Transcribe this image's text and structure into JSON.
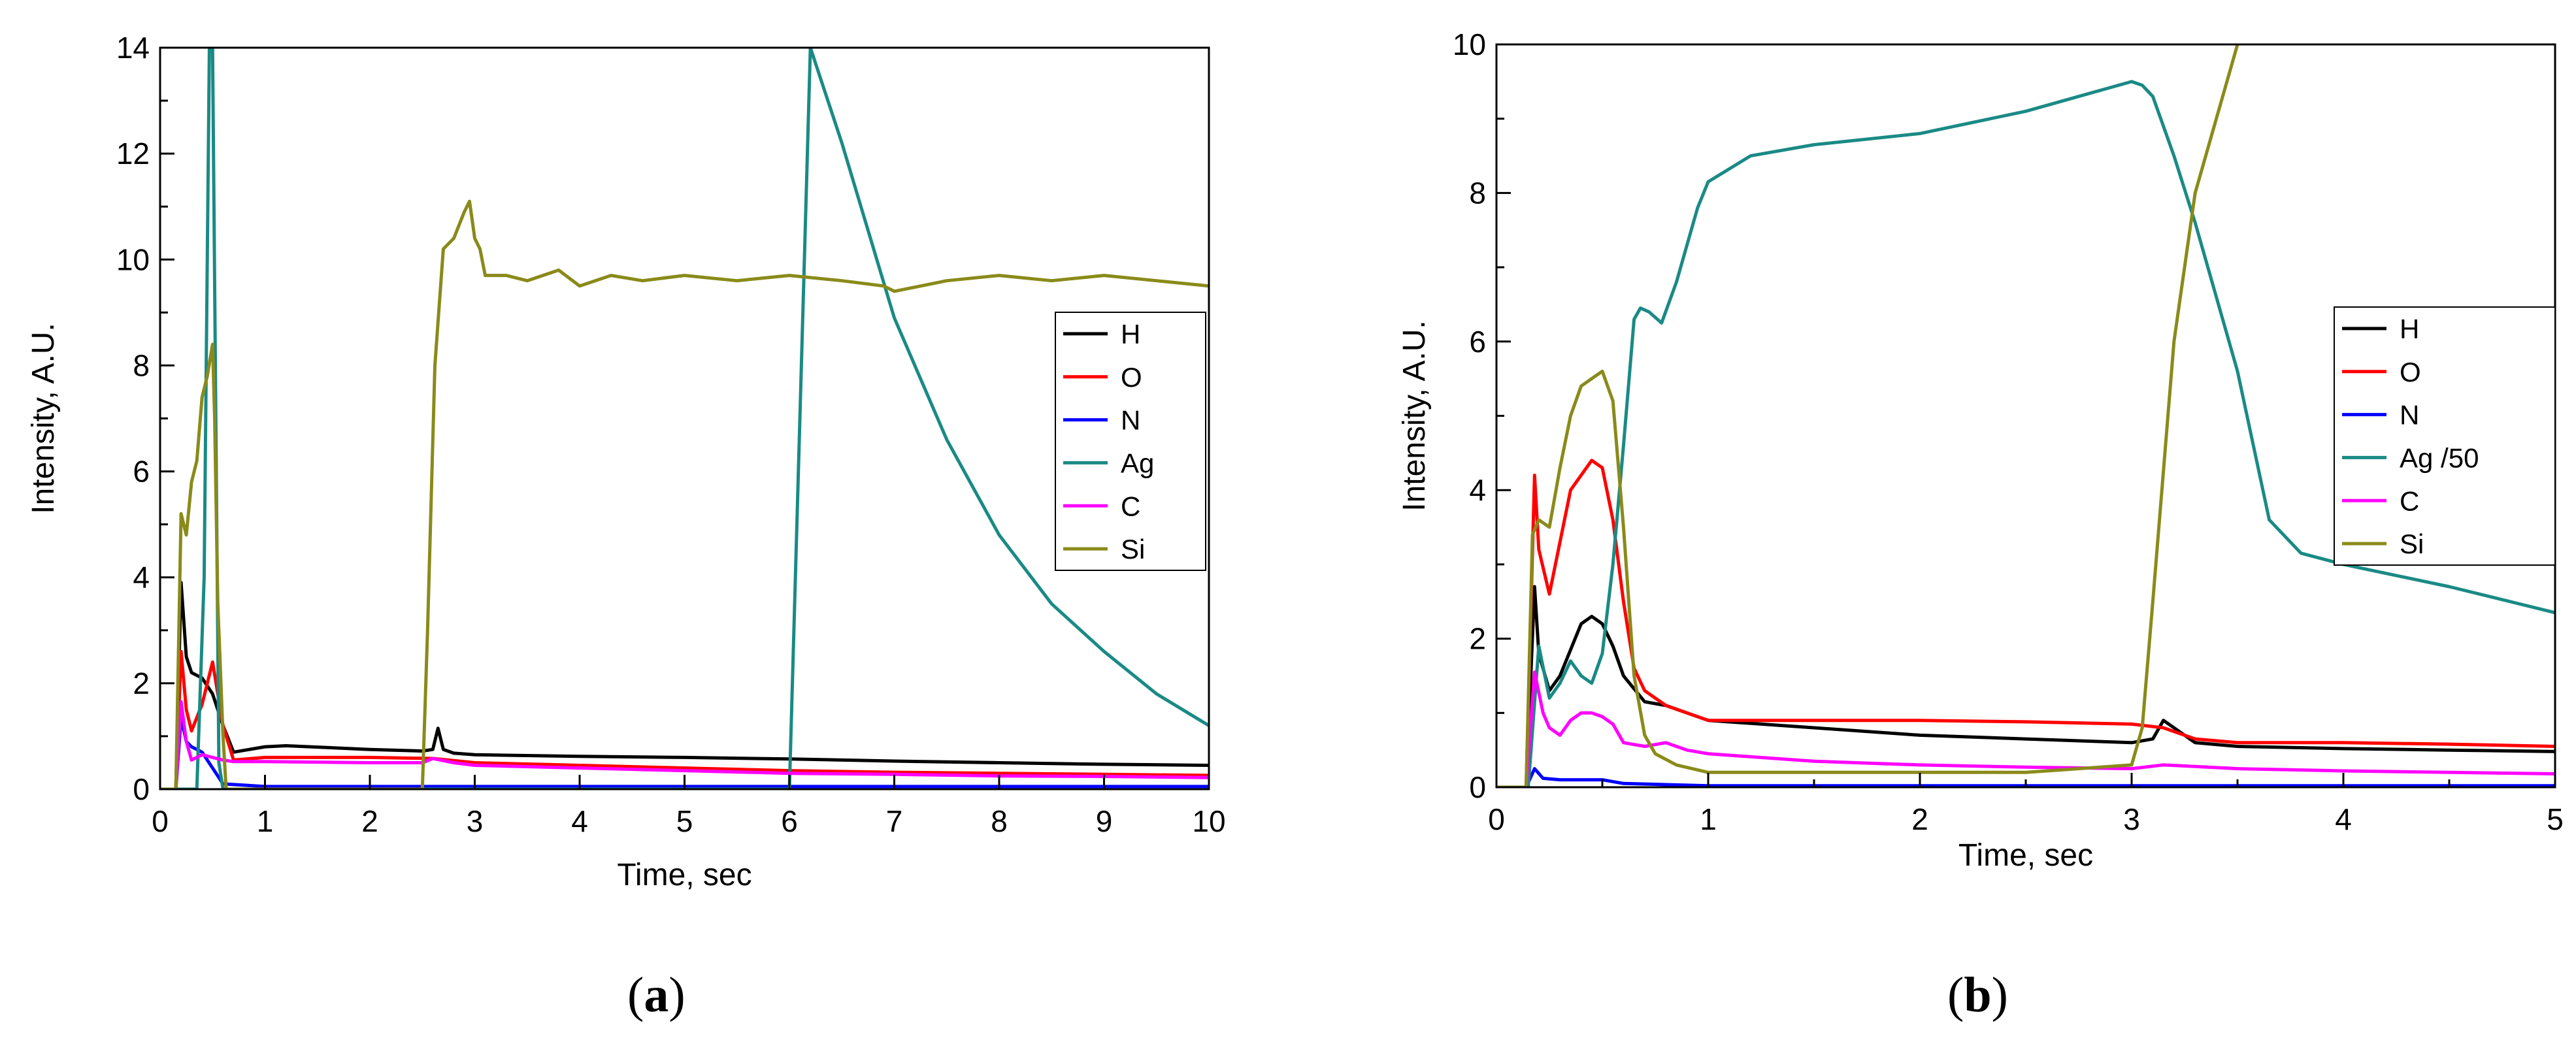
{
  "colors": {
    "H": "#000000",
    "O": "#ff0000",
    "N": "#0000ff",
    "Ag": "#1a8a85",
    "C": "#ff00ff",
    "Si": "#8a8a1a"
  },
  "captions": {
    "a": "a",
    "b": "b"
  },
  "chart_data": [
    {
      "type": "line",
      "id": "a",
      "title": "",
      "xlabel": "Time, sec",
      "ylabel": "Intensity, A.U.",
      "xlim": [
        0,
        10
      ],
      "ylim": [
        0,
        14
      ],
      "xticks": [
        "0",
        "1",
        "2",
        "3",
        "4",
        "5",
        "6",
        "7",
        "8",
        "9",
        "10"
      ],
      "yticks": [
        "0",
        "2",
        "4",
        "6",
        "8",
        "10",
        "12",
        "14"
      ],
      "legend": "right",
      "series": [
        {
          "name": "H",
          "x": [
            0,
            0.15,
            0.2,
            0.25,
            0.3,
            0.4,
            0.5,
            0.6,
            0.7,
            1,
            1.2,
            2,
            2.5,
            2.6,
            2.65,
            2.7,
            2.8,
            3,
            4,
            5,
            6,
            7,
            8,
            9,
            10
          ],
          "y": [
            0,
            0,
            3.9,
            2.5,
            2.2,
            2.1,
            1.8,
            1.2,
            0.7,
            0.8,
            0.82,
            0.75,
            0.72,
            0.75,
            1.15,
            0.75,
            0.68,
            0.65,
            0.62,
            0.6,
            0.57,
            0.53,
            0.5,
            0.47,
            0.45
          ]
        },
        {
          "name": "O",
          "x": [
            0,
            0.15,
            0.2,
            0.25,
            0.3,
            0.4,
            0.5,
            0.6,
            0.7,
            1,
            2,
            2.6,
            3,
            4,
            5,
            6,
            7,
            8,
            9,
            10
          ],
          "y": [
            0,
            0,
            2.6,
            1.5,
            1.1,
            1.6,
            2.4,
            1.2,
            0.55,
            0.6,
            0.6,
            0.58,
            0.5,
            0.45,
            0.4,
            0.35,
            0.32,
            0.3,
            0.28,
            0.26
          ]
        },
        {
          "name": "N",
          "x": [
            0,
            0.15,
            0.2,
            0.25,
            0.3,
            0.4,
            0.5,
            0.6,
            1,
            2,
            3,
            4,
            6,
            8,
            10
          ],
          "y": [
            0,
            0,
            1.35,
            0.9,
            0.8,
            0.7,
            0.4,
            0.1,
            0.05,
            0.05,
            0.05,
            0.05,
            0.05,
            0.05,
            0.05
          ]
        },
        {
          "name": "Ag",
          "x": [
            0,
            0.35,
            0.42,
            0.47,
            0.5,
            0.56,
            0.6,
            2.6,
            3,
            3.5,
            4,
            5,
            5.5,
            6,
            6.2,
            6.5,
            7,
            7.5,
            8,
            8.5,
            9,
            9.5,
            10
          ],
          "y": [
            0,
            0,
            4,
            14,
            14,
            0.5,
            0,
            0,
            0,
            0,
            0,
            0,
            0,
            0,
            14,
            12.2,
            8.9,
            6.6,
            4.8,
            3.5,
            2.6,
            1.8,
            1.2
          ]
        },
        {
          "name": "C",
          "x": [
            0,
            0.15,
            0.2,
            0.25,
            0.3,
            0.35,
            0.4,
            0.5,
            0.6,
            0.7,
            1,
            2,
            2.5,
            2.6,
            2.8,
            3,
            4,
            5,
            6,
            7,
            8,
            9,
            10
          ],
          "y": [
            0,
            0,
            1.65,
            0.9,
            0.55,
            0.6,
            0.65,
            0.6,
            0.55,
            0.52,
            0.52,
            0.5,
            0.5,
            0.58,
            0.5,
            0.45,
            0.4,
            0.35,
            0.3,
            0.28,
            0.25,
            0.24,
            0.22
          ]
        },
        {
          "name": "Si",
          "x": [
            0,
            0.15,
            0.2,
            0.25,
            0.3,
            0.35,
            0.4,
            0.45,
            0.5,
            0.52,
            0.55,
            0.6,
            0.63,
            0.7,
            1,
            2,
            2.5,
            2.55,
            2.62,
            2.7,
            2.8,
            2.9,
            2.95,
            3.0,
            3.05,
            3.1,
            3.3,
            3.5,
            3.8,
            4,
            4.3,
            4.6,
            5,
            5.5,
            6,
            6.5,
            6.9,
            7,
            7.5,
            8,
            8.5,
            9,
            9.5,
            10
          ],
          "y": [
            0,
            0,
            5.2,
            4.8,
            5.8,
            6.2,
            7.4,
            7.8,
            8.4,
            7,
            3.5,
            1,
            0,
            0,
            0,
            0,
            0,
            3,
            8,
            10.2,
            10.4,
            10.9,
            11.1,
            10.4,
            10.2,
            9.7,
            9.7,
            9.6,
            9.8,
            9.5,
            9.7,
            9.6,
            9.7,
            9.6,
            9.7,
            9.6,
            9.5,
            9.4,
            9.6,
            9.7,
            9.6,
            9.7,
            9.6,
            9.5
          ]
        }
      ]
    },
    {
      "type": "line",
      "id": "b",
      "title": "",
      "xlabel": "Time, sec",
      "ylabel": "Intensity, A.U.",
      "xlim": [
        0,
        5
      ],
      "ylim": [
        0,
        10
      ],
      "xticks": [
        "0",
        "1",
        "2",
        "3",
        "4",
        "5"
      ],
      "yticks": [
        "0",
        "2",
        "4",
        "6",
        "8",
        "10"
      ],
      "legend": "right",
      "series": [
        {
          "name": "H",
          "x": [
            0,
            0.14,
            0.18,
            0.2,
            0.25,
            0.3,
            0.4,
            0.45,
            0.5,
            0.55,
            0.6,
            0.7,
            0.8,
            1.0,
            1.5,
            2,
            2.5,
            3,
            3.1,
            3.15,
            3.2,
            3.3,
            3.5,
            4,
            4.5,
            5
          ],
          "y": [
            0,
            0,
            2.7,
            1.8,
            1.3,
            1.5,
            2.2,
            2.3,
            2.2,
            1.9,
            1.5,
            1.15,
            1.1,
            0.9,
            0.8,
            0.7,
            0.65,
            0.6,
            0.65,
            0.9,
            0.8,
            0.6,
            0.55,
            0.52,
            0.5,
            0.48
          ]
        },
        {
          "name": "O",
          "x": [
            0,
            0.14,
            0.18,
            0.2,
            0.25,
            0.3,
            0.35,
            0.45,
            0.5,
            0.55,
            0.6,
            0.65,
            0.7,
            0.8,
            1,
            1.5,
            2,
            2.5,
            3,
            3.15,
            3.3,
            3.5,
            4,
            4.5,
            5
          ],
          "y": [
            0,
            0,
            4.2,
            3.2,
            2.6,
            3.3,
            4.0,
            4.4,
            4.3,
            3.6,
            2.5,
            1.6,
            1.3,
            1.1,
            0.9,
            0.9,
            0.9,
            0.88,
            0.85,
            0.8,
            0.65,
            0.6,
            0.6,
            0.58,
            0.55
          ]
        },
        {
          "name": "N",
          "x": [
            0,
            0.14,
            0.18,
            0.22,
            0.3,
            0.5,
            0.6,
            1,
            2,
            3,
            4,
            5
          ],
          "y": [
            0,
            0,
            0.25,
            0.12,
            0.1,
            0.1,
            0.05,
            0.02,
            0.02,
            0.02,
            0.02,
            0.02
          ]
        },
        {
          "name": "Ag /50",
          "x": [
            0,
            0.15,
            0.2,
            0.25,
            0.3,
            0.35,
            0.4,
            0.45,
            0.5,
            0.55,
            0.6,
            0.65,
            0.68,
            0.72,
            0.78,
            0.85,
            0.95,
            1.0,
            1.2,
            1.5,
            2,
            2.5,
            3,
            3.05,
            3.1,
            3.2,
            3.3,
            3.5,
            3.65,
            3.8,
            4,
            4.5,
            5
          ],
          "y": [
            0,
            0,
            1.9,
            1.2,
            1.4,
            1.7,
            1.5,
            1.4,
            1.8,
            3.0,
            4.6,
            6.3,
            6.45,
            6.4,
            6.25,
            6.8,
            7.8,
            8.15,
            8.5,
            8.65,
            8.8,
            9.1,
            9.5,
            9.45,
            9.3,
            8.5,
            7.6,
            5.6,
            3.6,
            3.15,
            3.0,
            2.7,
            2.35
          ]
        },
        {
          "name": "C",
          "x": [
            0,
            0.14,
            0.18,
            0.22,
            0.25,
            0.3,
            0.35,
            0.4,
            0.45,
            0.5,
            0.55,
            0.6,
            0.7,
            0.8,
            0.9,
            1,
            1.5,
            2,
            2.5,
            3,
            3.15,
            3.3,
            3.5,
            4,
            4.5,
            5
          ],
          "y": [
            0,
            0,
            1.55,
            1.0,
            0.8,
            0.7,
            0.9,
            1.0,
            1.0,
            0.95,
            0.85,
            0.6,
            0.55,
            0.6,
            0.5,
            0.45,
            0.35,
            0.3,
            0.27,
            0.25,
            0.3,
            0.28,
            0.25,
            0.22,
            0.2,
            0.18
          ]
        },
        {
          "name": "Si",
          "x": [
            0,
            0.14,
            0.17,
            0.2,
            0.25,
            0.3,
            0.35,
            0.4,
            0.45,
            0.5,
            0.55,
            0.6,
            0.65,
            0.7,
            0.75,
            0.85,
            1,
            1.5,
            2,
            2.5,
            3,
            3.05,
            3.1,
            3.2,
            3.3,
            3.4,
            3.45,
            3.5
          ],
          "y": [
            0,
            0,
            3.4,
            3.6,
            3.5,
            4.3,
            5.0,
            5.4,
            5.5,
            5.6,
            5.2,
            3.5,
            1.5,
            0.7,
            0.45,
            0.3,
            0.2,
            0.2,
            0.2,
            0.2,
            0.3,
            0.8,
            2.5,
            6.0,
            8.0,
            9.0,
            9.5,
            10
          ]
        }
      ]
    }
  ]
}
